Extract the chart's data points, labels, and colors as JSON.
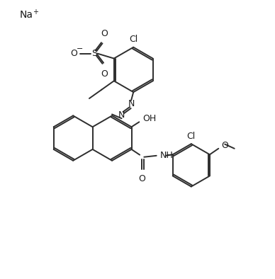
{
  "background_color": "#ffffff",
  "line_color": "#2d2d2d",
  "text_color": "#1a1a1a",
  "bond_lw": 1.4,
  "figsize": [
    3.88,
    3.94
  ],
  "dpi": 100,
  "xlim": [
    0,
    10
  ],
  "ylim": [
    0,
    10
  ]
}
